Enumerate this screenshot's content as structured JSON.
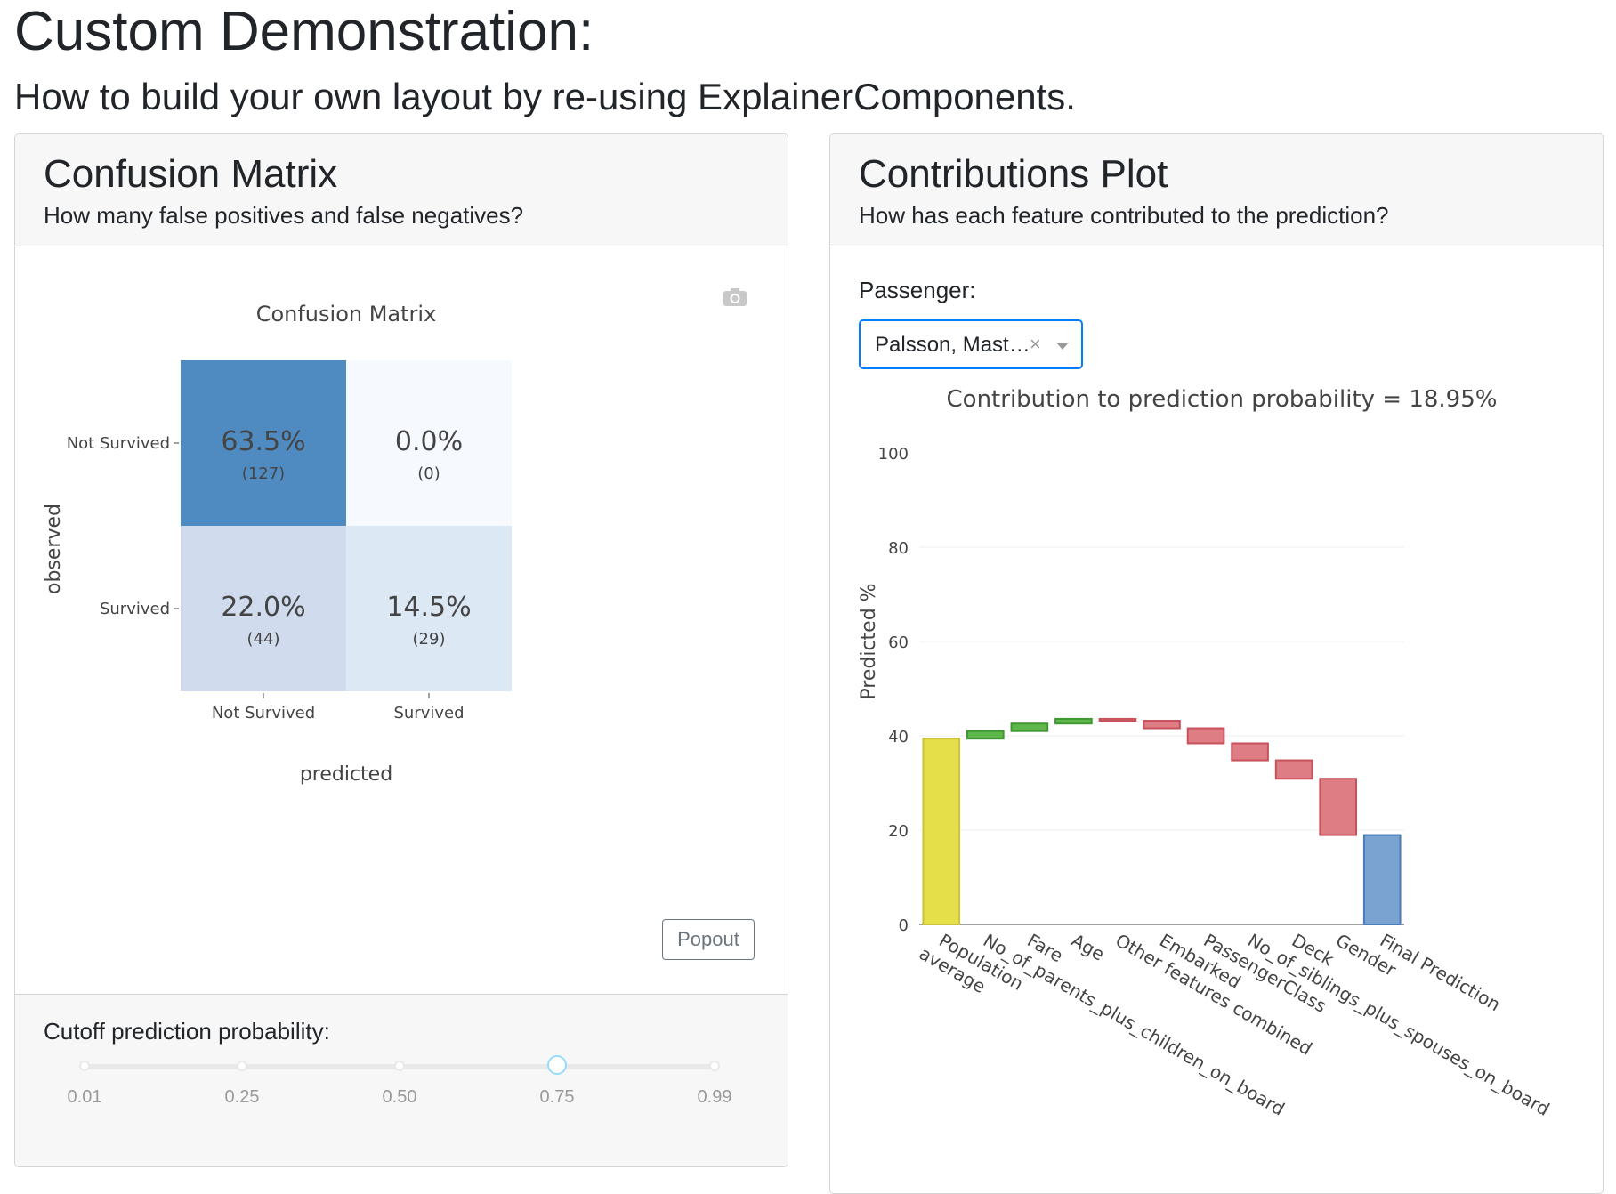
{
  "page": {
    "title": "Custom Demonstration:",
    "subtitle": "How to build your own layout by re-using ExplainerComponents."
  },
  "confusion_card": {
    "title": "Confusion Matrix",
    "subtitle": "How many false positives and false negatives?",
    "popout_label": "Popout",
    "cutoff": {
      "label": "Cutoff prediction probability:",
      "ticks": [
        "0.01",
        "0.25",
        "0.50",
        "0.75",
        "0.99"
      ],
      "value": 0.75
    }
  },
  "contributions_card": {
    "title": "Contributions Plot",
    "subtitle": "How has each feature contributed to the prediction?",
    "passenger_label": "Passenger:",
    "passenger_value": "Palsson, Master..."
  },
  "icons": {
    "camera": "camera-icon",
    "clear": "clear-icon",
    "dropdown": "chevron-down-icon"
  },
  "chart_data": [
    {
      "type": "heatmap",
      "title": "Confusion Matrix",
      "xlabel": "predicted",
      "ylabel": "observed",
      "x_categories": [
        "Not Survived",
        "Survived"
      ],
      "y_categories": [
        "Not Survived",
        "Survived"
      ],
      "cells": [
        [
          {
            "pct": "63.5%",
            "count": "(127)",
            "color": "#4f8bc1"
          },
          {
            "pct": "0.0%",
            "count": "(0)",
            "color": "#f6f9fe"
          }
        ],
        [
          {
            "pct": "22.0%",
            "count": "(44)",
            "color": "#d0dcee"
          },
          {
            "pct": "14.5%",
            "count": "(29)",
            "color": "#dde8f5"
          }
        ]
      ]
    },
    {
      "type": "bar",
      "title": "Contribution to prediction probability = 18.95%",
      "ylabel": "Predicted %",
      "ylim": [
        0,
        100
      ],
      "yticks": [
        0,
        20,
        40,
        60,
        80,
        100
      ],
      "grid": true,
      "categories": [
        "Population average",
        "No_of_parents_plus_children_on_board",
        "Fare",
        "Age",
        "Other features combined",
        "Embarked",
        "PassengerClass",
        "No_of_siblings_plus_spouses_on_board",
        "Deck",
        "Gender",
        "Final Prediction"
      ],
      "bars": [
        {
          "base": 0,
          "top": 39.4,
          "kind": "total"
        },
        {
          "base": 39.4,
          "top": 41.0,
          "kind": "positive"
        },
        {
          "base": 41.0,
          "top": 42.6,
          "kind": "positive"
        },
        {
          "base": 42.6,
          "top": 43.6,
          "kind": "positive"
        },
        {
          "base": 43.2,
          "top": 43.6,
          "kind": "negative"
        },
        {
          "base": 41.6,
          "top": 43.2,
          "kind": "negative"
        },
        {
          "base": 38.4,
          "top": 41.6,
          "kind": "negative"
        },
        {
          "base": 34.8,
          "top": 38.4,
          "kind": "negative"
        },
        {
          "base": 30.9,
          "top": 34.8,
          "kind": "negative"
        },
        {
          "base": 18.95,
          "top": 30.9,
          "kind": "negative"
        },
        {
          "base": 0,
          "top": 18.95,
          "kind": "final"
        }
      ],
      "colors": {
        "total": "#e5e04a",
        "positive": "#5db74b",
        "negative": "#de7d84",
        "final": "#7aa3d1"
      }
    }
  ]
}
